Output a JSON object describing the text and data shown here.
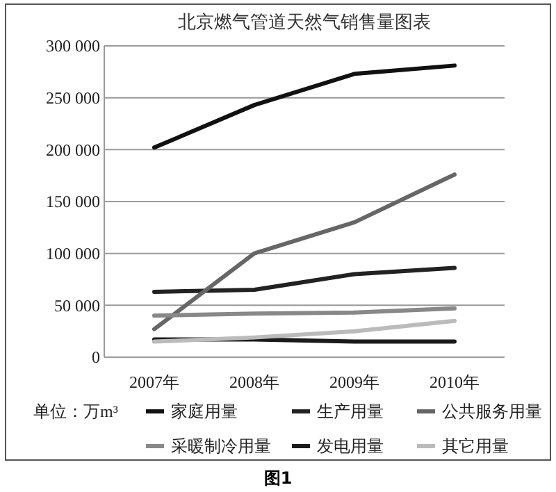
{
  "chart_data": {
    "type": "line",
    "title": "北京燃气管道天然气销售量图表",
    "categories": [
      "2007年",
      "2008年",
      "2009年",
      "2010年"
    ],
    "series": [
      {
        "name": "家庭用量",
        "color": "#111111",
        "values": [
          202000,
          243000,
          273000,
          281000
        ]
      },
      {
        "name": "生产用量",
        "color": "#222222",
        "values": [
          63000,
          65000,
          80000,
          86000
        ]
      },
      {
        "name": "公共服务用量",
        "color": "#666666",
        "values": [
          27000,
          100000,
          130000,
          176000
        ]
      },
      {
        "name": "采暖制冷用量",
        "color": "#888888",
        "values": [
          40000,
          42000,
          43000,
          47000
        ]
      },
      {
        "name": "发电用量",
        "color": "#1a1a1a",
        "values": [
          17000,
          17000,
          15000,
          15000
        ]
      },
      {
        "name": "其它用量",
        "color": "#bbbbbb",
        "values": [
          15000,
          19000,
          25000,
          35000
        ]
      }
    ],
    "ylim": [
      0,
      300000
    ],
    "yticks": [
      {
        "value": 0,
        "label": "0"
      },
      {
        "value": 50000,
        "label": "50 000"
      },
      {
        "value": 100000,
        "label": "100 000"
      },
      {
        "value": 150000,
        "label": "150 000"
      },
      {
        "value": 200000,
        "label": "200 000"
      },
      {
        "value": 250000,
        "label": "250 000"
      },
      {
        "value": 300000,
        "label": "300 000"
      }
    ],
    "grid": "y",
    "legend": "bottom",
    "marker": "none",
    "line_style": "solid",
    "annotations": [
      "单位：万m³",
      "图1"
    ]
  }
}
